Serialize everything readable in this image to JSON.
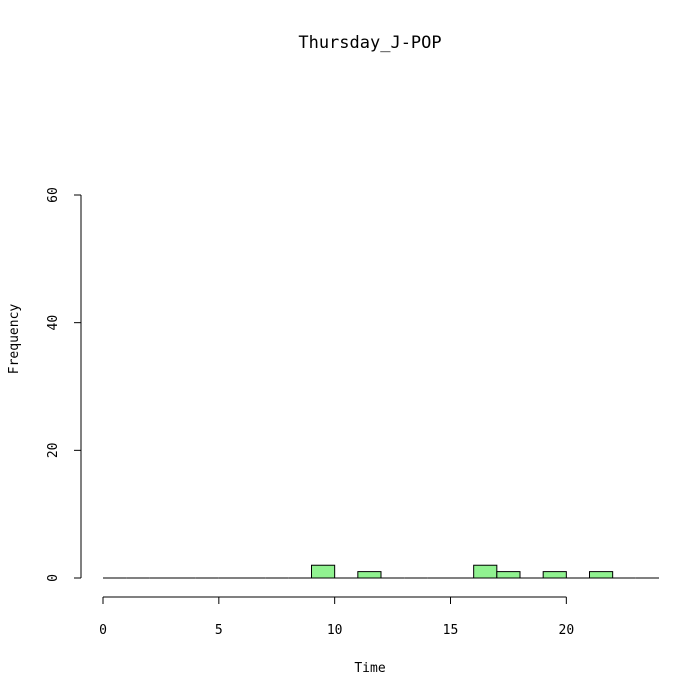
{
  "chart_data": {
    "type": "bar",
    "title": "Thursday_J-POP",
    "xlabel": "Time",
    "ylabel": "Frequency",
    "bin_width": 1,
    "bins_start": 0,
    "bins_end": 24,
    "counts": [
      0,
      0,
      0,
      0,
      0,
      0,
      0,
      0,
      0,
      2,
      0,
      1,
      0,
      0,
      0,
      0,
      2,
      1,
      0,
      1,
      0,
      1,
      0,
      0
    ],
    "xlim": [
      0,
      24
    ],
    "ylim": [
      0,
      60
    ],
    "x_ticks": [
      0,
      5,
      10,
      15,
      20
    ],
    "y_ticks": [
      0,
      20,
      40,
      60
    ],
    "bar_color": "#90f290",
    "grid": false
  }
}
